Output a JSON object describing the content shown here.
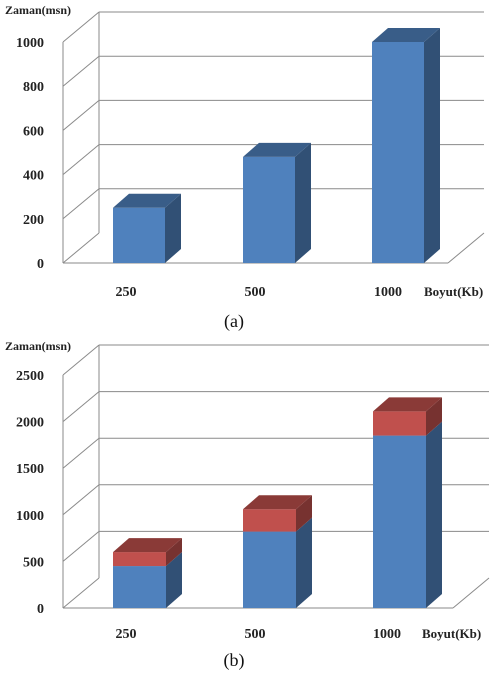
{
  "chart_data": [
    {
      "type": "bar",
      "panel_caption": "(a)",
      "ylabel": "Zaman(msn)",
      "xlabel": "Boyut(Kb)",
      "categories": [
        "250",
        "500",
        "1000"
      ],
      "ylim": [
        0,
        1000
      ],
      "yticks": [
        0,
        200,
        400,
        600,
        800,
        1000
      ],
      "grid": true,
      "three_d": true,
      "series": [
        {
          "values": [
            250,
            480,
            1000
          ],
          "color": "#4f81bd"
        }
      ]
    },
    {
      "type": "bar",
      "stacked": true,
      "panel_caption": "(b)",
      "ylabel": "Zaman(msn)",
      "xlabel": "Boyut(Kb)",
      "categories": [
        "250",
        "500",
        "1000"
      ],
      "ylim": [
        0,
        2500
      ],
      "yticks": [
        0,
        500,
        1000,
        1500,
        2000,
        2500
      ],
      "grid": true,
      "three_d": true,
      "series": [
        {
          "values": [
            450,
            820,
            1850
          ],
          "color": "#4f81bd"
        },
        {
          "values": [
            150,
            240,
            260
          ],
          "color": "#c0504d"
        }
      ]
    }
  ]
}
